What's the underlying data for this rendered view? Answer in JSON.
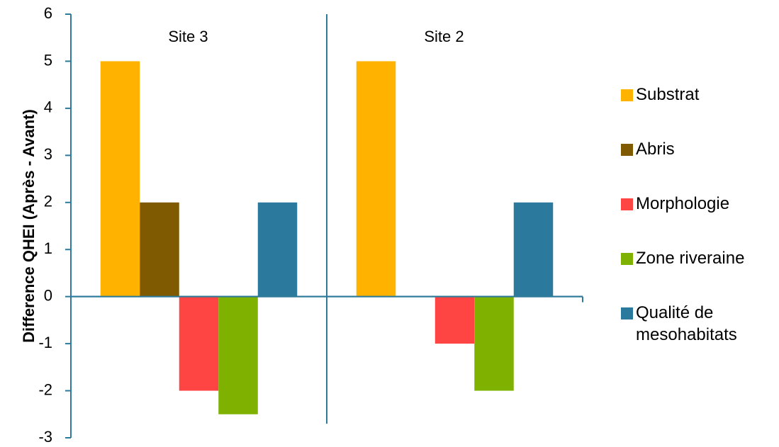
{
  "chart_data": {
    "type": "bar",
    "ylabel": "Difference QHEI (Après  - Avant)",
    "ylim": [
      -3,
      6
    ],
    "yticks": [
      -3,
      -2,
      -1,
      0,
      1,
      2,
      3,
      4,
      5,
      6
    ],
    "grid": false,
    "legend_position": "right",
    "categories": [
      "Site 3",
      "Site 2"
    ],
    "series": [
      {
        "name": "Substrat",
        "color": "#FFB300",
        "values": [
          5,
          5
        ]
      },
      {
        "name": "Abris",
        "color": "#7F5A00",
        "values": [
          2,
          0
        ]
      },
      {
        "name": "Morphologie",
        "color": "#FF4444",
        "values": [
          -2,
          -1
        ]
      },
      {
        "name": "Zone riveraine",
        "color": "#7FB200",
        "values": [
          -2.5,
          -2
        ]
      },
      {
        "name": "Qualité de mesohabitats",
        "color": "#2B7A9E",
        "values": [
          2,
          2
        ]
      }
    ],
    "legend_lines": [
      [
        "Substrat"
      ],
      [
        "Abris"
      ],
      [
        "Morphologie"
      ],
      [
        "Zone riveraine"
      ],
      [
        "Qualité de",
        "mesohabitats"
      ]
    ]
  }
}
